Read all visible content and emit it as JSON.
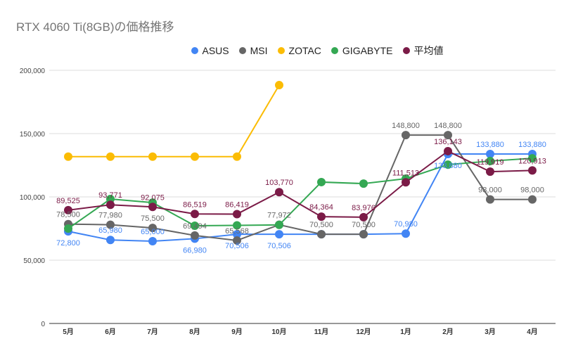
{
  "chart_data": {
    "type": "line",
    "title": "RTX 4060 Ti(8GB)の価格推移",
    "categories": [
      "5月",
      "6月",
      "7月",
      "8月",
      "9月",
      "10月",
      "11月",
      "12月",
      "1月",
      "2月",
      "3月",
      "4月"
    ],
    "ylim": [
      0,
      200000
    ],
    "yticks": [
      "0",
      "50,000",
      "100,000",
      "150,000",
      "200,000"
    ],
    "ytick_values": [
      0,
      50000,
      100000,
      150000,
      200000
    ],
    "grid": true,
    "legend": "top",
    "series": [
      {
        "name": "ASUS",
        "color": "#4285f4",
        "values": [
          72800,
          65980,
          65000,
          66980,
          70506,
          70506,
          70500,
          70500,
          70980,
          133880,
          133880,
          133880
        ],
        "labels": [
          "72,800",
          "65,980",
          "65,000",
          "66,980",
          "70,506",
          "70,506",
          "",
          "",
          "70,980",
          "133,880",
          "133,880",
          "133,880"
        ]
      },
      {
        "name": "MSI",
        "color": "#666666",
        "values": [
          78500,
          77980,
          75500,
          69494,
          65568,
          77972,
          70500,
          70500,
          148800,
          148800,
          98000,
          98000
        ],
        "labels": [
          "78,500",
          "77,980",
          "75,500",
          "69,494",
          "65,568",
          "77,972",
          "70,500",
          "70,500",
          "148,800",
          "148,800",
          "98,000",
          "98,000"
        ]
      },
      {
        "name": "ZOTAC",
        "color": "#fbbc04",
        "values": [
          131800,
          131800,
          131800,
          131800,
          131800,
          188300,
          null,
          null,
          null,
          null,
          null,
          null
        ],
        "labels": []
      },
      {
        "name": "GIGABYTE",
        "color": "#34a853",
        "values": [
          75000,
          98300,
          95500,
          77200,
          77500,
          77900,
          111700,
          110500,
          114400,
          125500,
          128300,
          130500
        ],
        "labels": []
      },
      {
        "name": "平均値",
        "color": "#7b1b47",
        "values": [
          89525,
          93771,
          92075,
          86519,
          86419,
          103770,
          84364,
          83976,
          111513,
          136143,
          119919,
          120913
        ],
        "labels": [
          "89,525",
          "93,771",
          "92,075",
          "86,519",
          "86,419",
          "103,770",
          "84,364",
          "83,976",
          "111,513",
          "136,143",
          "119,919",
          "120,913"
        ]
      }
    ]
  }
}
